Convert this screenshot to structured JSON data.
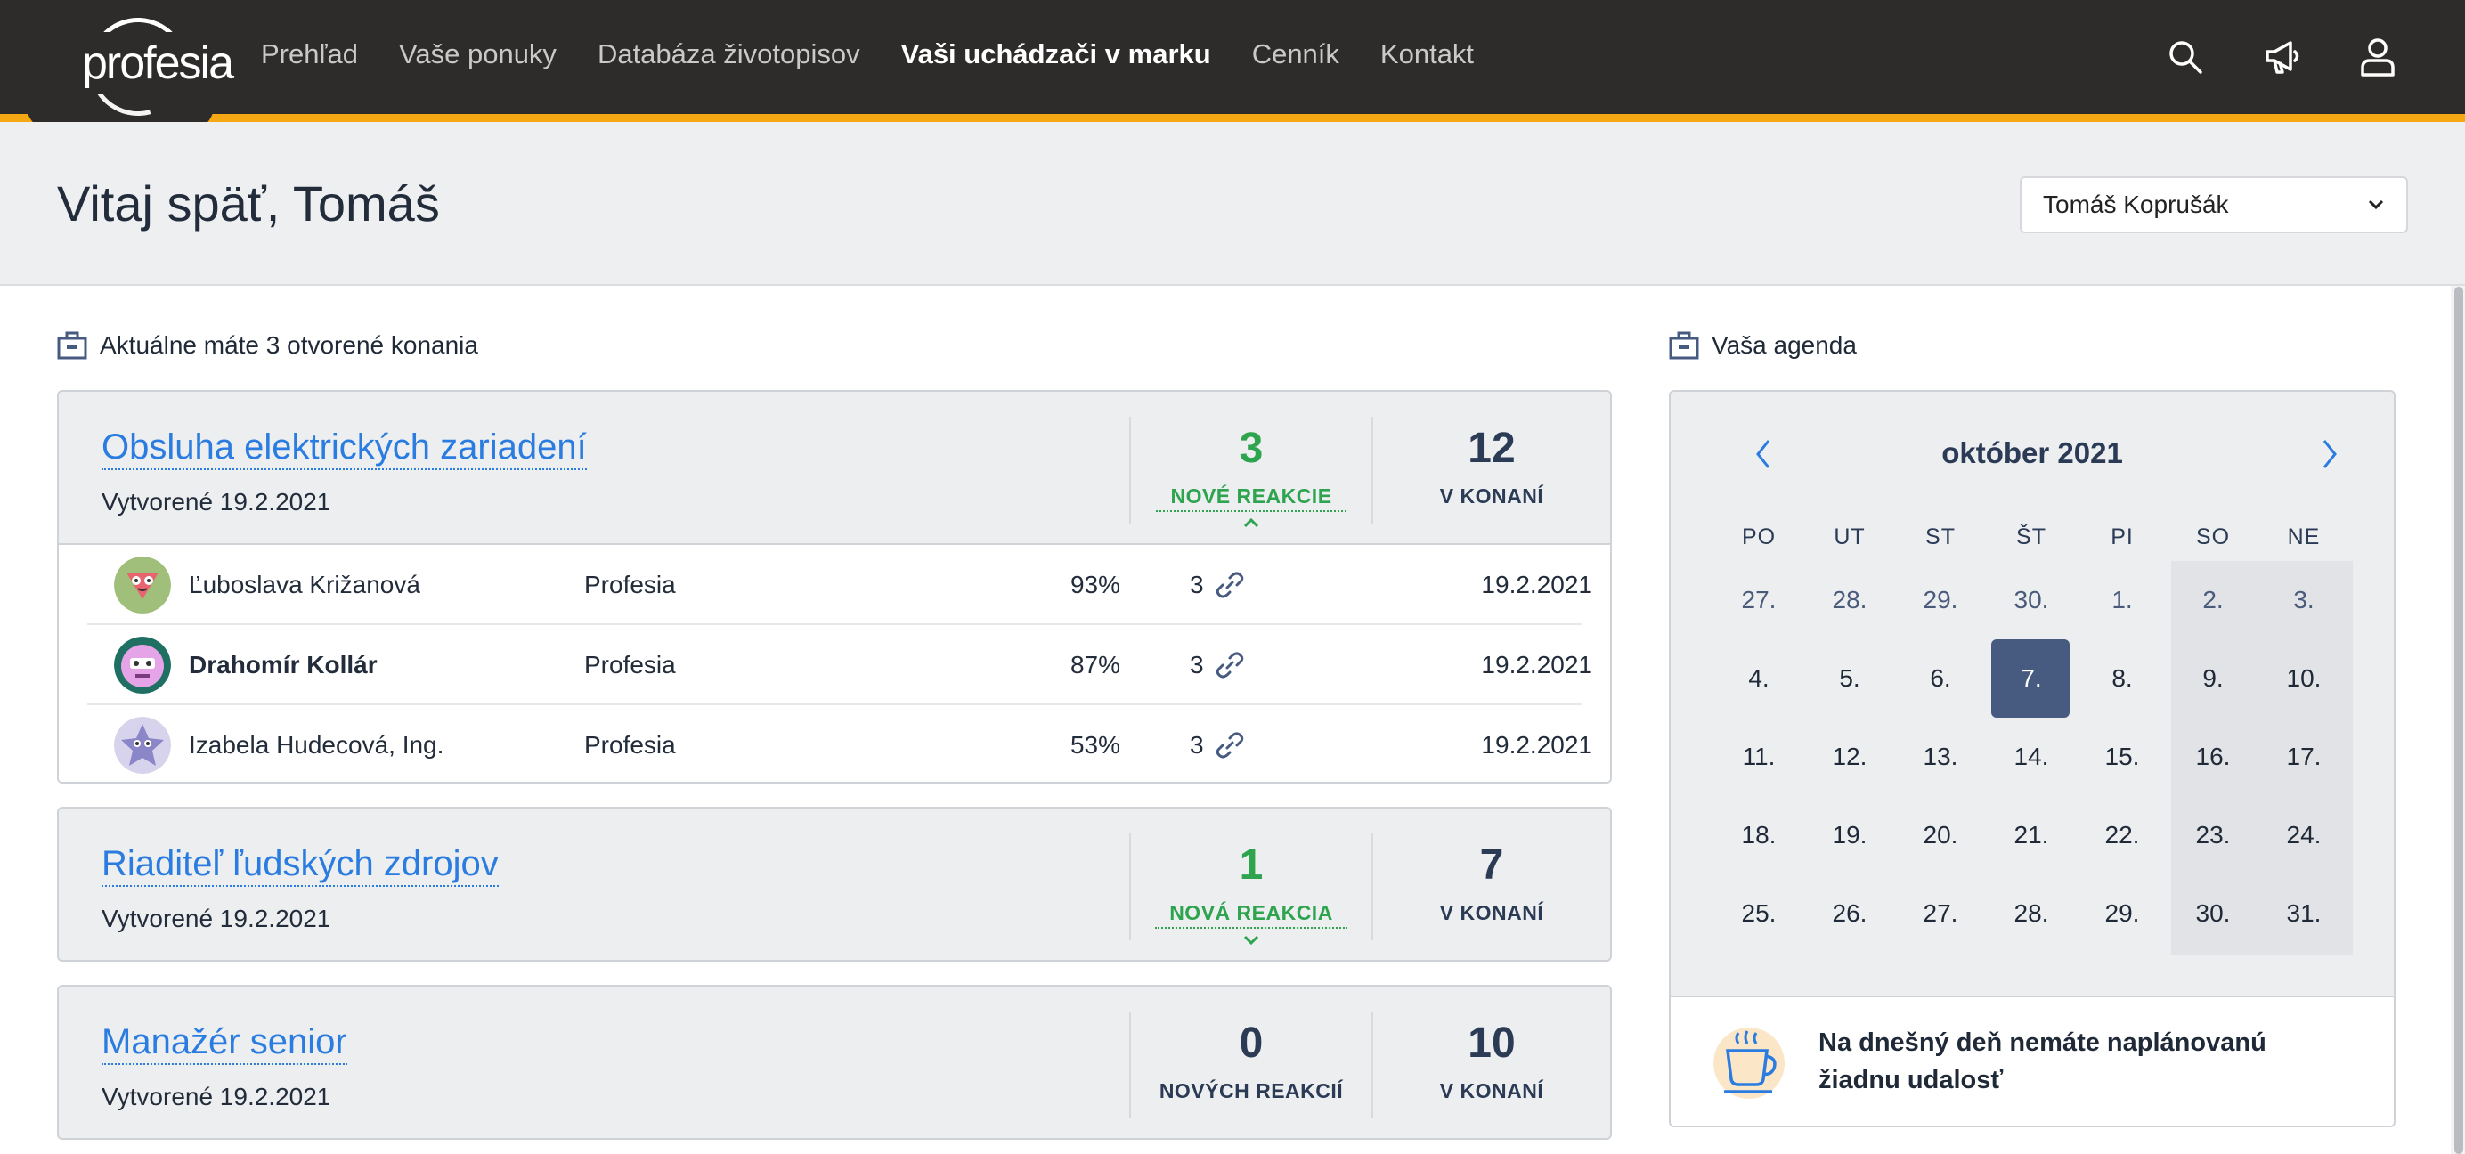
{
  "brand": {
    "logo_text": "profesia",
    "accent": "#f5a714",
    "nav_bg": "#2d2c2a",
    "link_color": "#2b7ce0",
    "green": "#2ea44f"
  },
  "nav": {
    "items": [
      "Prehľad",
      "Vaše ponuky",
      "Databáza životopisov",
      "Vaši uchádzači v marku",
      "Cenník",
      "Kontakt"
    ],
    "active": "Vaši uchádzači v marku",
    "icons": [
      "search-icon",
      "megaphone-icon",
      "user-icon"
    ]
  },
  "greeting": "Vitaj späť, Tomáš",
  "user_select": {
    "value": "Tomáš Koprušák"
  },
  "positions_section": {
    "title": "Aktuálne máte 3 otvorené konania",
    "cards": [
      {
        "title": "Obsluha elektrických zariadení",
        "created": "Vytvorené 19.2.2021",
        "new_count": "3",
        "new_label": "NOVÉ REAKCIE",
        "process_count": "12",
        "process_label": "V KONANÍ",
        "expanded": true,
        "candidates": [
          {
            "name": "Ľuboslava Križanová",
            "company": "Profesia",
            "match": "93%",
            "links": "3",
            "date": "19.2.2021",
            "avatar": "green-triangle-face"
          },
          {
            "name": "Drahomír Kollár",
            "company": "Profesia",
            "match": "87%",
            "links": "3",
            "date": "19.2.2021",
            "avatar": "teal-robot-face"
          },
          {
            "name": "Izabela Hudecová, Ing.",
            "company": "Profesia",
            "match": "53%",
            "links": "3",
            "date": "19.2.2021",
            "avatar": "purple-star-face"
          }
        ]
      },
      {
        "title": "Riaditeľ ľudských zdrojov",
        "created": "Vytvorené 19.2.2021",
        "new_count": "1",
        "new_label": "NOVÁ REAKCIA",
        "process_count": "7",
        "process_label": "V KONANÍ",
        "expanded": false
      },
      {
        "title": "Manažér senior",
        "created": "Vytvorené 19.2.2021",
        "new_count": "0",
        "new_label": "NOVÝCH REAKCIÍ",
        "process_count": "10",
        "process_label": "V KONANÍ",
        "expanded": false
      }
    ]
  },
  "agenda": {
    "title": "Vaša agenda",
    "month": "október 2021",
    "weekdays": [
      "PO",
      "UT",
      "ST",
      "ŠT",
      "PI",
      "SO",
      "NE"
    ],
    "days": [
      "27.",
      "28.",
      "29.",
      "30.",
      "1.",
      "2.",
      "3.",
      "4.",
      "5.",
      "6.",
      "7.",
      "8.",
      "9.",
      "10.",
      "11.",
      "12.",
      "13.",
      "14.",
      "15.",
      "16.",
      "17.",
      "18.",
      "19.",
      "20.",
      "21.",
      "22.",
      "23.",
      "24.",
      "25.",
      "26.",
      "27.",
      "28.",
      "29.",
      "30.",
      "31."
    ],
    "today": "7.",
    "empty_message": "Na dnešný deň nemáte naplánovanú žiadnu udalosť"
  }
}
